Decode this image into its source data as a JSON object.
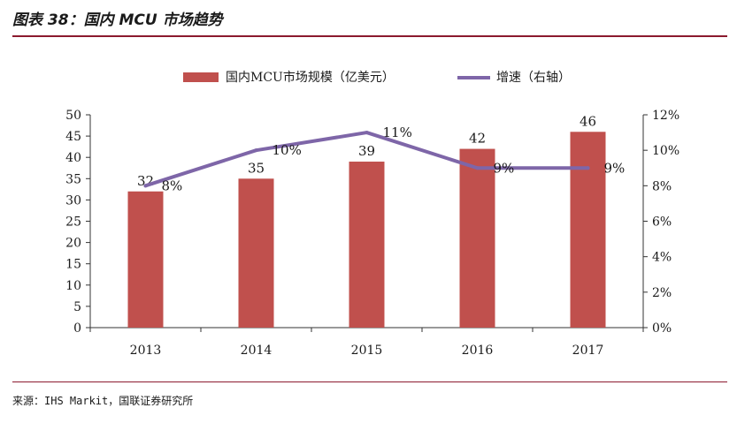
{
  "header": {
    "title": "图表 38：国内 MCU 市场趋势"
  },
  "footer": {
    "source": "来源：IHS Markit，国联证券研究所"
  },
  "colors": {
    "bar": "#c0504d",
    "line": "#7e66a8",
    "rule": "#8b1a2e"
  },
  "chart_data": {
    "type": "bar+line",
    "categories": [
      "2013",
      "2014",
      "2015",
      "2016",
      "2017"
    ],
    "series": [
      {
        "name": "国内MCU市场规模（亿美元）",
        "type": "bar",
        "axis": "left",
        "values": [
          32,
          35,
          39,
          42,
          46
        ],
        "labels": [
          "32",
          "35",
          "39",
          "42",
          "46"
        ]
      },
      {
        "name": "增速（右轴）",
        "type": "line",
        "axis": "right",
        "values": [
          0.08,
          0.1,
          0.11,
          0.09,
          0.09
        ],
        "labels": [
          "8%",
          "10%",
          "11%",
          "9%",
          "9%"
        ]
      }
    ],
    "y_left": {
      "min": 0,
      "max": 50,
      "ticks": [
        "0",
        "5",
        "10",
        "15",
        "20",
        "25",
        "30",
        "35",
        "40",
        "45",
        "50"
      ]
    },
    "y_right": {
      "min": 0,
      "max": 0.12,
      "ticks": [
        "0%",
        "2%",
        "4%",
        "6%",
        "8%",
        "10%",
        "12%"
      ]
    },
    "grid": false,
    "legend": "top-center"
  }
}
